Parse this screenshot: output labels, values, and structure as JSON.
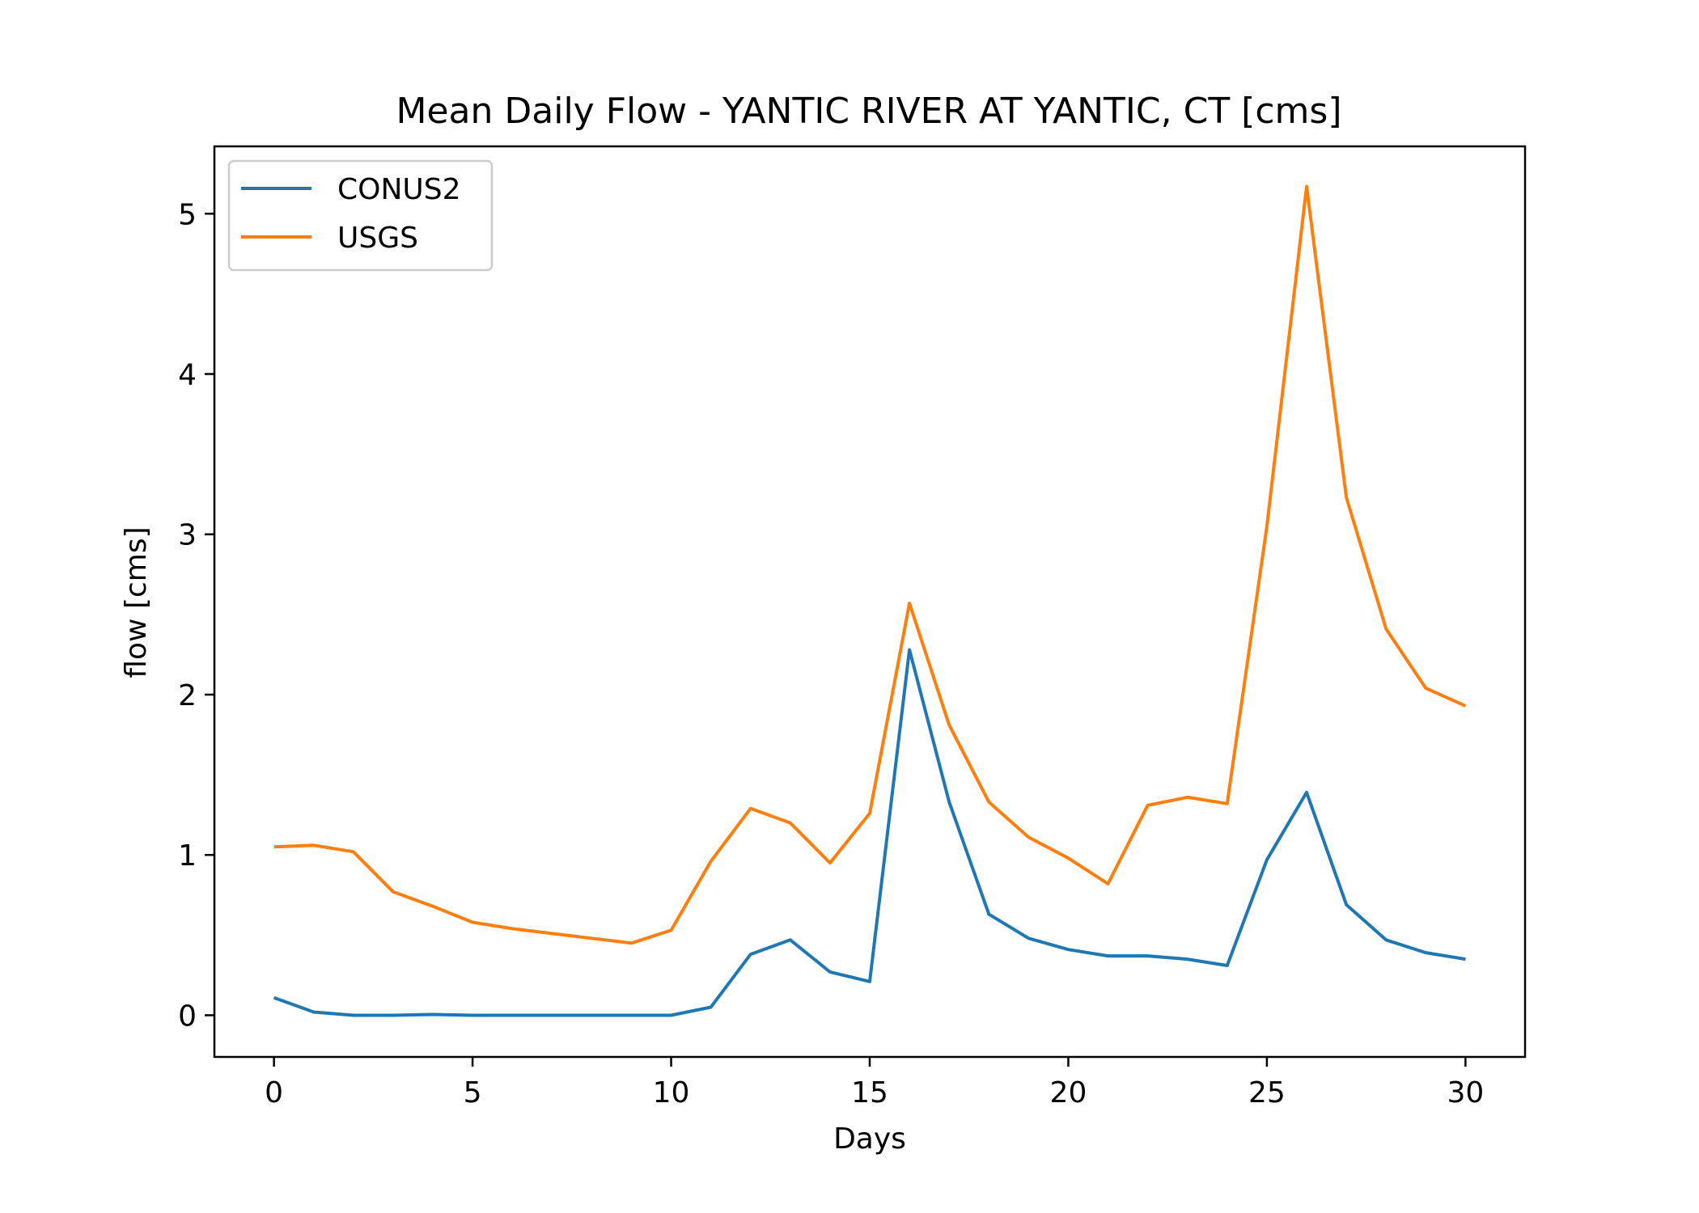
{
  "chart_data": {
    "type": "line",
    "title": "Mean Daily Flow - YANTIC RIVER AT YANTIC, CT [cms]",
    "xlabel": "Days",
    "ylabel": "flow [cms]",
    "xlim": [
      -1.5,
      31.5
    ],
    "ylim": [
      -0.26,
      5.42
    ],
    "xticks": [
      0,
      5,
      10,
      15,
      20,
      25,
      30
    ],
    "yticks": [
      0,
      1,
      2,
      3,
      4,
      5
    ],
    "grid": false,
    "legend_position": "top-left",
    "x": [
      0,
      1,
      2,
      3,
      4,
      5,
      6,
      7,
      8,
      9,
      10,
      11,
      12,
      13,
      14,
      15,
      16,
      17,
      18,
      19,
      20,
      21,
      22,
      23,
      24,
      25,
      26,
      27,
      28,
      29,
      30
    ],
    "series": [
      {
        "name": "CONUS2",
        "color": "#1f77b4",
        "values": [
          0.11,
          0.02,
          0.0,
          0.0,
          0.005,
          0.0,
          0.0,
          0.0,
          0.0,
          0.0,
          0.0,
          0.05,
          0.38,
          0.47,
          0.27,
          0.21,
          2.28,
          1.33,
          0.63,
          0.48,
          0.41,
          0.37,
          0.37,
          0.35,
          0.31,
          0.97,
          1.39,
          0.69,
          0.47,
          0.39,
          0.35
        ]
      },
      {
        "name": "USGS",
        "color": "#ff7f0e",
        "values": [
          1.05,
          1.06,
          1.02,
          0.77,
          0.68,
          0.58,
          0.54,
          0.51,
          0.48,
          0.45,
          0.53,
          0.96,
          1.29,
          1.2,
          0.95,
          1.26,
          2.57,
          1.81,
          1.33,
          1.11,
          0.98,
          0.82,
          1.31,
          1.36,
          1.32,
          3.05,
          5.17,
          3.23,
          2.41,
          2.04,
          1.93
        ]
      }
    ]
  }
}
